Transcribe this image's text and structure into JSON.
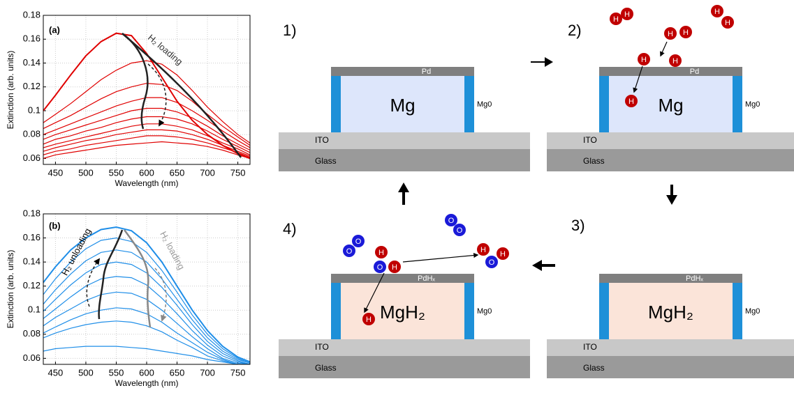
{
  "chart_data": [
    {
      "type": "line",
      "x": [
        430,
        450,
        475,
        500,
        525,
        550,
        575,
        600,
        625,
        650,
        675,
        700,
        725,
        750,
        770
      ],
      "xlim": [
        430,
        770
      ],
      "ylim": [
        0.055,
        0.18
      ],
      "xticks": [
        450,
        500,
        550,
        600,
        650,
        700,
        750
      ],
      "yticks": [
        0.06,
        0.08,
        0.1,
        0.12,
        0.14,
        0.16,
        0.18
      ],
      "xlabel": "Wavelength (nm)",
      "ylabel": "Extinction (arb. units)",
      "grid": true,
      "annotations": [
        "(a)",
        "H₂ loading"
      ],
      "series": [
        {
          "color": "#e00000",
          "values": [
            0.1,
            0.113,
            0.13,
            0.146,
            0.158,
            0.165,
            0.163,
            0.148,
            0.128,
            0.108,
            0.092,
            0.08,
            0.071,
            0.064,
            0.06
          ]
        },
        {
          "color": "#e00000",
          "values": [
            0.09,
            0.097,
            0.106,
            0.116,
            0.126,
            0.134,
            0.14,
            0.142,
            0.139,
            0.13,
            0.117,
            0.103,
            0.091,
            0.08,
            0.073
          ]
        },
        {
          "color": "#e00000",
          "values": [
            0.085,
            0.09,
            0.096,
            0.103,
            0.11,
            0.116,
            0.12,
            0.123,
            0.122,
            0.117,
            0.108,
            0.097,
            0.087,
            0.078,
            0.071
          ]
        },
        {
          "color": "#e00000",
          "values": [
            0.08,
            0.084,
            0.089,
            0.094,
            0.099,
            0.104,
            0.108,
            0.111,
            0.111,
            0.107,
            0.1,
            0.092,
            0.083,
            0.075,
            0.069
          ]
        },
        {
          "color": "#e00000",
          "values": [
            0.076,
            0.08,
            0.084,
            0.088,
            0.092,
            0.096,
            0.1,
            0.102,
            0.102,
            0.099,
            0.094,
            0.087,
            0.079,
            0.072,
            0.067
          ]
        },
        {
          "color": "#e00000",
          "values": [
            0.072,
            0.076,
            0.079,
            0.083,
            0.086,
            0.09,
            0.093,
            0.095,
            0.095,
            0.093,
            0.089,
            0.083,
            0.076,
            0.07,
            0.065
          ]
        },
        {
          "color": "#e00000",
          "values": [
            0.069,
            0.072,
            0.075,
            0.078,
            0.081,
            0.084,
            0.087,
            0.089,
            0.089,
            0.087,
            0.084,
            0.079,
            0.073,
            0.068,
            0.063
          ]
        },
        {
          "color": "#e00000",
          "values": [
            0.066,
            0.069,
            0.072,
            0.075,
            0.077,
            0.08,
            0.082,
            0.084,
            0.084,
            0.083,
            0.08,
            0.076,
            0.071,
            0.066,
            0.062
          ]
        },
        {
          "color": "#e00000",
          "values": [
            0.063,
            0.066,
            0.068,
            0.071,
            0.073,
            0.075,
            0.077,
            0.079,
            0.079,
            0.078,
            0.076,
            0.073,
            0.069,
            0.065,
            0.061
          ]
        },
        {
          "color": "#e00000",
          "values": [
            0.06,
            0.063,
            0.065,
            0.067,
            0.069,
            0.071,
            0.072,
            0.073,
            0.074,
            0.073,
            0.072,
            0.07,
            0.067,
            0.063,
            0.06
          ]
        }
      ]
    },
    {
      "type": "line",
      "x": [
        430,
        450,
        475,
        500,
        525,
        550,
        575,
        600,
        625,
        650,
        675,
        700,
        725,
        750,
        770
      ],
      "xlim": [
        430,
        770
      ],
      "ylim": [
        0.055,
        0.18
      ],
      "xticks": [
        450,
        500,
        550,
        600,
        650,
        700,
        750
      ],
      "yticks": [
        0.06,
        0.08,
        0.1,
        0.12,
        0.14,
        0.16,
        0.18
      ],
      "xlabel": "Wavelength (nm)",
      "ylabel": "Extinction (arb. units)",
      "grid": true,
      "annotations": [
        "(b)",
        "H₂ unloading",
        "H₂ loading"
      ],
      "series": [
        {
          "color": "#1f8ee8",
          "values": [
            0.123,
            0.136,
            0.15,
            0.16,
            0.167,
            0.169,
            0.166,
            0.156,
            0.14,
            0.12,
            0.1,
            0.083,
            0.07,
            0.061,
            0.057
          ]
        },
        {
          "color": "#1f8ee8",
          "values": [
            0.113,
            0.126,
            0.14,
            0.151,
            0.158,
            0.16,
            0.157,
            0.148,
            0.133,
            0.115,
            0.096,
            0.08,
            0.068,
            0.06,
            0.056
          ]
        },
        {
          "color": "#1f8ee8",
          "values": [
            0.105,
            0.117,
            0.13,
            0.141,
            0.148,
            0.15,
            0.148,
            0.14,
            0.126,
            0.109,
            0.092,
            0.077,
            0.066,
            0.059,
            0.056
          ]
        },
        {
          "color": "#1f8ee8",
          "values": [
            0.099,
            0.109,
            0.121,
            0.131,
            0.138,
            0.14,
            0.138,
            0.131,
            0.119,
            0.104,
            0.088,
            0.074,
            0.064,
            0.058,
            0.055
          ]
        },
        {
          "color": "#1f8ee8",
          "values": [
            0.093,
            0.101,
            0.111,
            0.12,
            0.126,
            0.128,
            0.127,
            0.121,
            0.11,
            0.097,
            0.083,
            0.071,
            0.062,
            0.057,
            0.055
          ]
        },
        {
          "color": "#1f8ee8",
          "values": [
            0.087,
            0.094,
            0.101,
            0.108,
            0.113,
            0.115,
            0.114,
            0.109,
            0.1,
            0.089,
            0.078,
            0.068,
            0.06,
            0.056,
            0.055
          ]
        },
        {
          "color": "#1f8ee8",
          "values": [
            0.081,
            0.086,
            0.092,
            0.097,
            0.1,
            0.102,
            0.101,
            0.097,
            0.09,
            0.081,
            0.073,
            0.065,
            0.059,
            0.055,
            0.055
          ]
        },
        {
          "color": "#1f8ee8",
          "values": [
            0.077,
            0.081,
            0.085,
            0.088,
            0.09,
            0.091,
            0.09,
            0.087,
            0.082,
            0.075,
            0.069,
            0.062,
            0.058,
            0.055,
            0.055
          ]
        },
        {
          "color": "#1f8ee8",
          "values": [
            0.066,
            0.068,
            0.069,
            0.07,
            0.07,
            0.07,
            0.069,
            0.068,
            0.066,
            0.064,
            0.062,
            0.059,
            0.057,
            0.055,
            0.055
          ]
        }
      ]
    }
  ],
  "diagram": {
    "panels": [
      {
        "label": "1)",
        "top_layer": "Pd",
        "core": "Mg",
        "side_label": "Mg0",
        "ito": "ITO",
        "glass": "Glass",
        "atoms": []
      },
      {
        "label": "2)",
        "top_layer": "Pd",
        "core": "Mg",
        "side_label": "Mg0",
        "ito": "ITO",
        "glass": "Glass",
        "atoms": [
          "H",
          "H",
          "H",
          "H",
          "H",
          "H",
          "H",
          "H",
          "H"
        ]
      },
      {
        "label": "3)",
        "top_layer": "PdHₓ",
        "core": "MgH₂",
        "side_label": "Mg0",
        "ito": "ITO",
        "glass": "Glass",
        "atoms": []
      },
      {
        "label": "4)",
        "top_layer": "PdHₓ",
        "core": "MgH₂",
        "side_label": "Mg0",
        "ito": "ITO",
        "glass": "Glass",
        "atoms": [
          "O",
          "O",
          "O",
          "O",
          "H",
          "O",
          "H",
          "H",
          "O",
          "H",
          "H"
        ]
      }
    ]
  }
}
